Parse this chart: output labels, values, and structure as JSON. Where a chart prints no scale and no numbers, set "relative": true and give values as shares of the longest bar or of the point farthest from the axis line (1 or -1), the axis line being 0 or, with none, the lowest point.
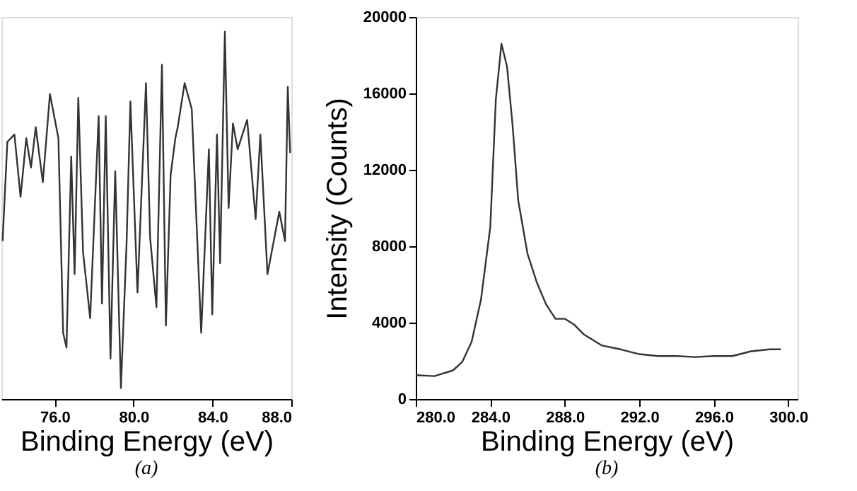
{
  "chart_data": [
    {
      "type": "line",
      "relative": true,
      "xlabel": "Binding Energy (eV)",
      "annotations": [
        "(a)"
      ],
      "grid": false,
      "marker": "none",
      "line_style": "solid",
      "tick_labels": "x",
      "xlim": [
        73.3,
        88.0
      ],
      "xticks": [
        {
          "value": 76,
          "label": "76.0"
        },
        {
          "value": 80,
          "label": "80.0"
        },
        {
          "value": 84,
          "label": "84.0"
        },
        {
          "value": 88,
          "label": "88.0"
        }
      ],
      "x": [
        73.36,
        73.6,
        73.96,
        74.27,
        74.56,
        74.8,
        75.04,
        75.4,
        75.76,
        76.19,
        76.43,
        76.6,
        76.84,
        77.01,
        77.2,
        77.44,
        77.8,
        78.23,
        78.4,
        78.59,
        78.83,
        79.07,
        79.36,
        79.65,
        79.84,
        80.2,
        80.63,
        80.84,
        81.16,
        81.44,
        81.64,
        81.88,
        82.12,
        82.24,
        82.59,
        82.95,
        83.43,
        83.82,
        83.99,
        84.23,
        84.39,
        84.63,
        84.82,
        85.04,
        85.28,
        85.76,
        86.19,
        86.43,
        86.79,
        87.39,
        87.68,
        87.82,
        87.94
      ],
      "series": [
        {
          "color": "#333333",
          "values": [
            0.43,
            0.7,
            0.72,
            0.55,
            0.71,
            0.63,
            0.74,
            0.59,
            0.83,
            0.71,
            0.18,
            0.14,
            0.66,
            0.34,
            0.82,
            0.4,
            0.22,
            0.77,
            0.26,
            0.77,
            0.11,
            0.62,
            0.03,
            0.43,
            0.81,
            0.29,
            0.86,
            0.44,
            0.25,
            0.91,
            0.2,
            0.61,
            0.71,
            0.74,
            0.86,
            0.79,
            0.18,
            0.68,
            0.23,
            0.72,
            0.37,
            1.0,
            0.52,
            0.75,
            0.68,
            0.76,
            0.49,
            0.72,
            0.34,
            0.51,
            0.43,
            0.85,
            0.67
          ]
        }
      ]
    },
    {
      "type": "line",
      "xlabel": "Binding Energy (eV)",
      "ylabel": "Intensity (Counts)",
      "annotations": [
        "(b)"
      ],
      "grid": false,
      "marker": "none",
      "line_style": "solid",
      "xlim": [
        280,
        300.5
      ],
      "xticks": [
        {
          "value": 280,
          "label": "280.0"
        },
        {
          "value": 284,
          "label": "284.0"
        },
        {
          "value": 288,
          "label": "288.0"
        },
        {
          "value": 292,
          "label": "292.0"
        },
        {
          "value": 296,
          "label": "296.0"
        },
        {
          "value": 300,
          "label": "300.0"
        }
      ],
      "ylim": [
        0,
        20000
      ],
      "yticks": [
        0,
        4000,
        8000,
        12000,
        16000,
        20000
      ],
      "x": [
        280,
        281,
        282,
        282.5,
        283,
        283.5,
        284,
        284.3,
        284.6,
        284.9,
        285.2,
        285.5,
        286,
        286.5,
        287,
        287.5,
        288,
        288.5,
        289,
        290,
        291,
        292,
        293,
        294,
        295,
        296,
        297,
        298,
        299,
        299.6
      ],
      "series": [
        {
          "color": "#333333",
          "values": [
            1250,
            1200,
            1500,
            1950,
            3000,
            5200,
            9000,
            15700,
            18600,
            17400,
            14300,
            10400,
            7600,
            6100,
            4950,
            4200,
            4200,
            3900,
            3400,
            2800,
            2600,
            2350,
            2250,
            2250,
            2200,
            2250,
            2250,
            2500,
            2600,
            2600
          ]
        }
      ]
    }
  ]
}
